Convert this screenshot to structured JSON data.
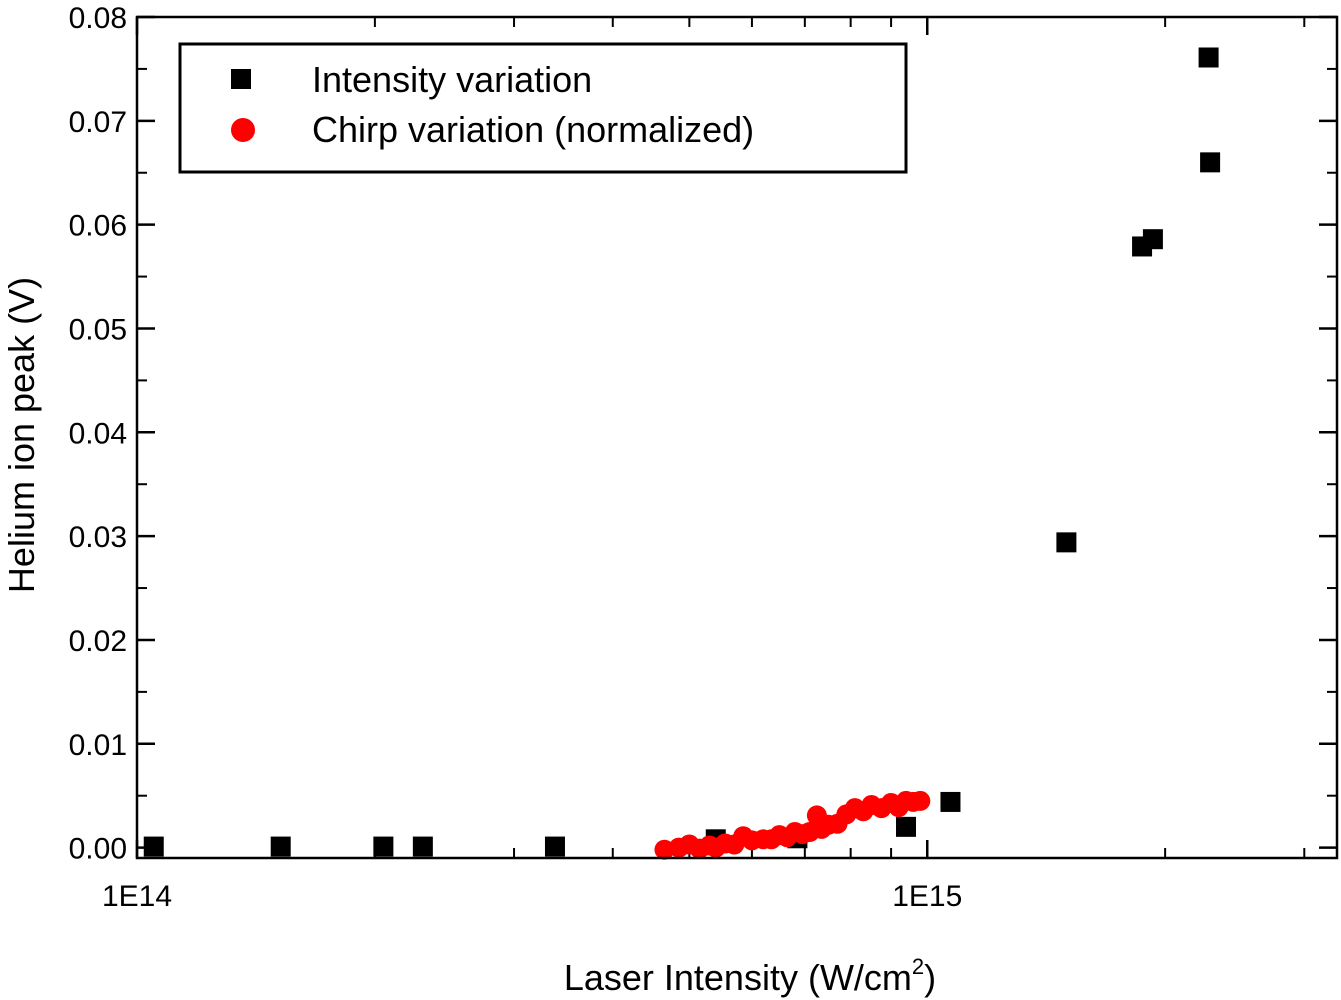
{
  "chart_data": {
    "type": "scatter",
    "title": "",
    "xlabel": "Laser Intensity (W/cm",
    "xlabel_sup": "2",
    "xlabel_close": ")",
    "ylabel": "Helium ion peak (V)",
    "x_scale": "log",
    "xlim": [
      100000000000000.0,
      3300000000000000.0
    ],
    "ylim": [
      -0.001,
      0.08
    ],
    "x_tick_labels": [
      {
        "value": 100000000000000.0,
        "label": "1E14"
      },
      {
        "value": 1000000000000000.0,
        "label": "1E15"
      }
    ],
    "y_ticks": [
      {
        "value": 0.0,
        "label": "0.00"
      },
      {
        "value": 0.01,
        "label": "0.01"
      },
      {
        "value": 0.02,
        "label": "0.02"
      },
      {
        "value": 0.03,
        "label": "0.03"
      },
      {
        "value": 0.04,
        "label": "0.04"
      },
      {
        "value": 0.05,
        "label": "0.05"
      },
      {
        "value": 0.06,
        "label": "0.06"
      },
      {
        "value": 0.07,
        "label": "0.07"
      },
      {
        "value": 0.08,
        "label": "0.08"
      }
    ],
    "legend_position": "top-left",
    "series": [
      {
        "name": "Intensity variation",
        "marker": "square",
        "color": "#000000",
        "points": [
          {
            "x": 105000000000000.0,
            "y": 0.0001
          },
          {
            "x": 152000000000000.0,
            "y": 0.0001
          },
          {
            "x": 205000000000000.0,
            "y": 0.0001
          },
          {
            "x": 230000000000000.0,
            "y": 0.0001
          },
          {
            "x": 338000000000000.0,
            "y": 0.0001
          },
          {
            "x": 540000000000000.0,
            "y": 0.0008
          },
          {
            "x": 685000000000000.0,
            "y": 0.0009
          },
          {
            "x": 940000000000000.0,
            "y": 0.002
          },
          {
            "x": 1070000000000000.0,
            "y": 0.0044
          },
          {
            "x": 1500000000000000.0,
            "y": 0.0294
          },
          {
            "x": 1870000000000000.0,
            "y": 0.0579
          },
          {
            "x": 1930000000000000.0,
            "y": 0.0586
          },
          {
            "x": 2270000000000000.0,
            "y": 0.0761
          },
          {
            "x": 2280000000000000.0,
            "y": 0.066
          }
        ]
      },
      {
        "name": "Chirp variation (normalized)",
        "marker": "circle",
        "color": "#ff0000",
        "points": [
          {
            "x": 465000000000000.0,
            "y": -0.0002
          },
          {
            "x": 485000000000000.0,
            "y": 0.0
          },
          {
            "x": 500000000000000.0,
            "y": 0.0003
          },
          {
            "x": 515000000000000.0,
            "y": -0.0001
          },
          {
            "x": 530000000000000.0,
            "y": 0.0002
          },
          {
            "x": 540000000000000.0,
            "y": 0.0
          },
          {
            "x": 555000000000000.0,
            "y": 0.0004
          },
          {
            "x": 570000000000000.0,
            "y": 0.0003
          },
          {
            "x": 585000000000000.0,
            "y": 0.0011
          },
          {
            "x": 600000000000000.0,
            "y": 0.0007
          },
          {
            "x": 620000000000000.0,
            "y": 0.0008
          },
          {
            "x": 635000000000000.0,
            "y": 0.0008
          },
          {
            "x": 650000000000000.0,
            "y": 0.0012
          },
          {
            "x": 665000000000000.0,
            "y": 0.001
          },
          {
            "x": 680000000000000.0,
            "y": 0.0015
          },
          {
            "x": 695000000000000.0,
            "y": 0.0013
          },
          {
            "x": 710000000000000.0,
            "y": 0.0015
          },
          {
            "x": 725000000000000.0,
            "y": 0.0031
          },
          {
            "x": 735000000000000.0,
            "y": 0.0018
          },
          {
            "x": 750000000000000.0,
            "y": 0.0022
          },
          {
            "x": 770000000000000.0,
            "y": 0.0023
          },
          {
            "x": 790000000000000.0,
            "y": 0.0032
          },
          {
            "x": 810000000000000.0,
            "y": 0.0038
          },
          {
            "x": 830000000000000.0,
            "y": 0.0035
          },
          {
            "x": 850000000000000.0,
            "y": 0.0041
          },
          {
            "x": 875000000000000.0,
            "y": 0.0038
          },
          {
            "x": 900000000000000.0,
            "y": 0.0043
          },
          {
            "x": 920000000000000.0,
            "y": 0.0039
          },
          {
            "x": 940000000000000.0,
            "y": 0.0045
          },
          {
            "x": 960000000000000.0,
            "y": 0.0044
          },
          {
            "x": 980000000000000.0,
            "y": 0.0045
          }
        ]
      }
    ]
  }
}
